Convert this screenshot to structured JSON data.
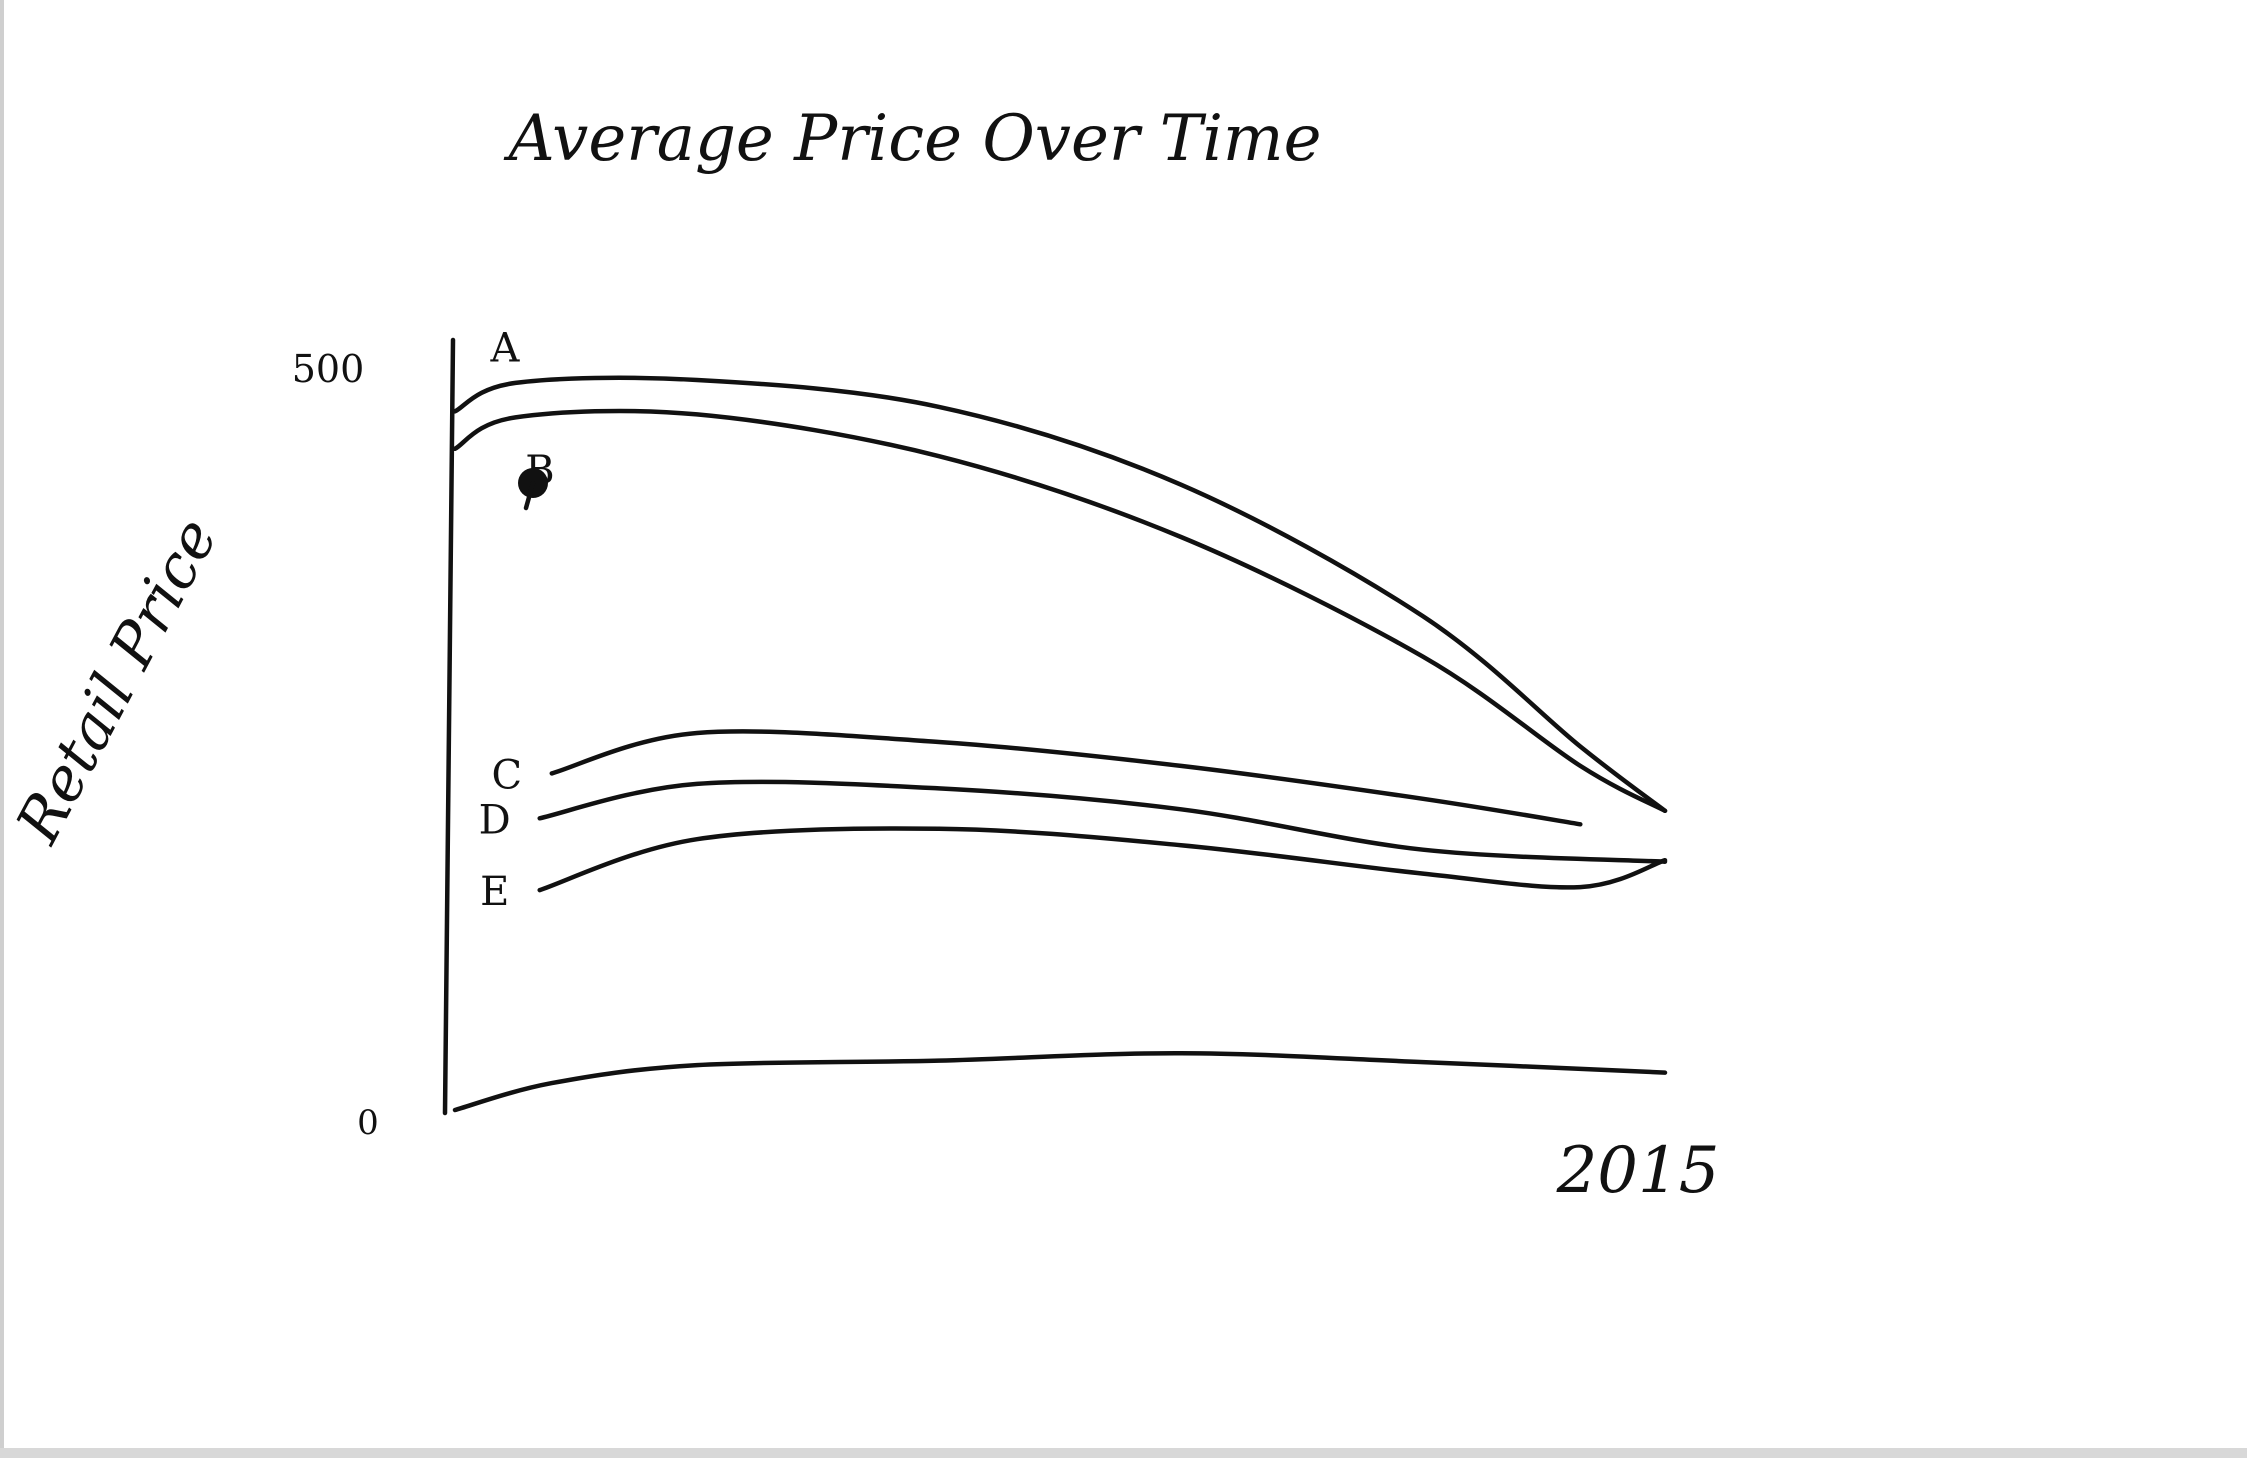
{
  "chart_data": {
    "type": "line",
    "title": "Average Price Over Time",
    "ylabel": "Retail Price",
    "xlabel": "",
    "x_tick_labels": [
      "2015"
    ],
    "y_tick_labels": [
      "500",
      "0"
    ],
    "ylim": [
      0,
      500
    ],
    "xlim": [
      0,
      1
    ],
    "grid": false,
    "color": "#111111",
    "series": [
      {
        "name": "A",
        "x": [
          0,
          0.05,
          0.2,
          0.4,
          0.6,
          0.8,
          0.93,
          1.0
        ],
        "values": [
          467,
          486,
          488,
          470,
          418,
          330,
          243,
          200
        ]
      },
      {
        "name": "B",
        "x": [
          0,
          0.05,
          0.2,
          0.4,
          0.6,
          0.8,
          0.93,
          1.0
        ],
        "values": [
          442,
          463,
          465,
          437,
          383,
          303,
          230,
          200
        ]
      },
      {
        "name": "C",
        "x": [
          0.08,
          0.2,
          0.4,
          0.6,
          0.8,
          0.93
        ],
        "values": [
          225,
          252,
          246,
          230,
          208,
          191
        ]
      },
      {
        "name": "D",
        "x": [
          0.07,
          0.2,
          0.4,
          0.6,
          0.8,
          1.0
        ],
        "values": [
          195,
          218,
          215,
          201,
          174,
          166
        ]
      },
      {
        "name": "E",
        "x": [
          0.07,
          0.2,
          0.4,
          0.6,
          0.8,
          0.93,
          1.0
        ],
        "values": [
          147,
          181,
          188,
          177,
          158,
          149,
          167
        ]
      },
      {
        "name": "",
        "x": [
          0,
          0.08,
          0.2,
          0.4,
          0.6,
          0.8,
          1.0
        ],
        "values": [
          0,
          18,
          30,
          33,
          38,
          32,
          25
        ]
      }
    ]
  }
}
